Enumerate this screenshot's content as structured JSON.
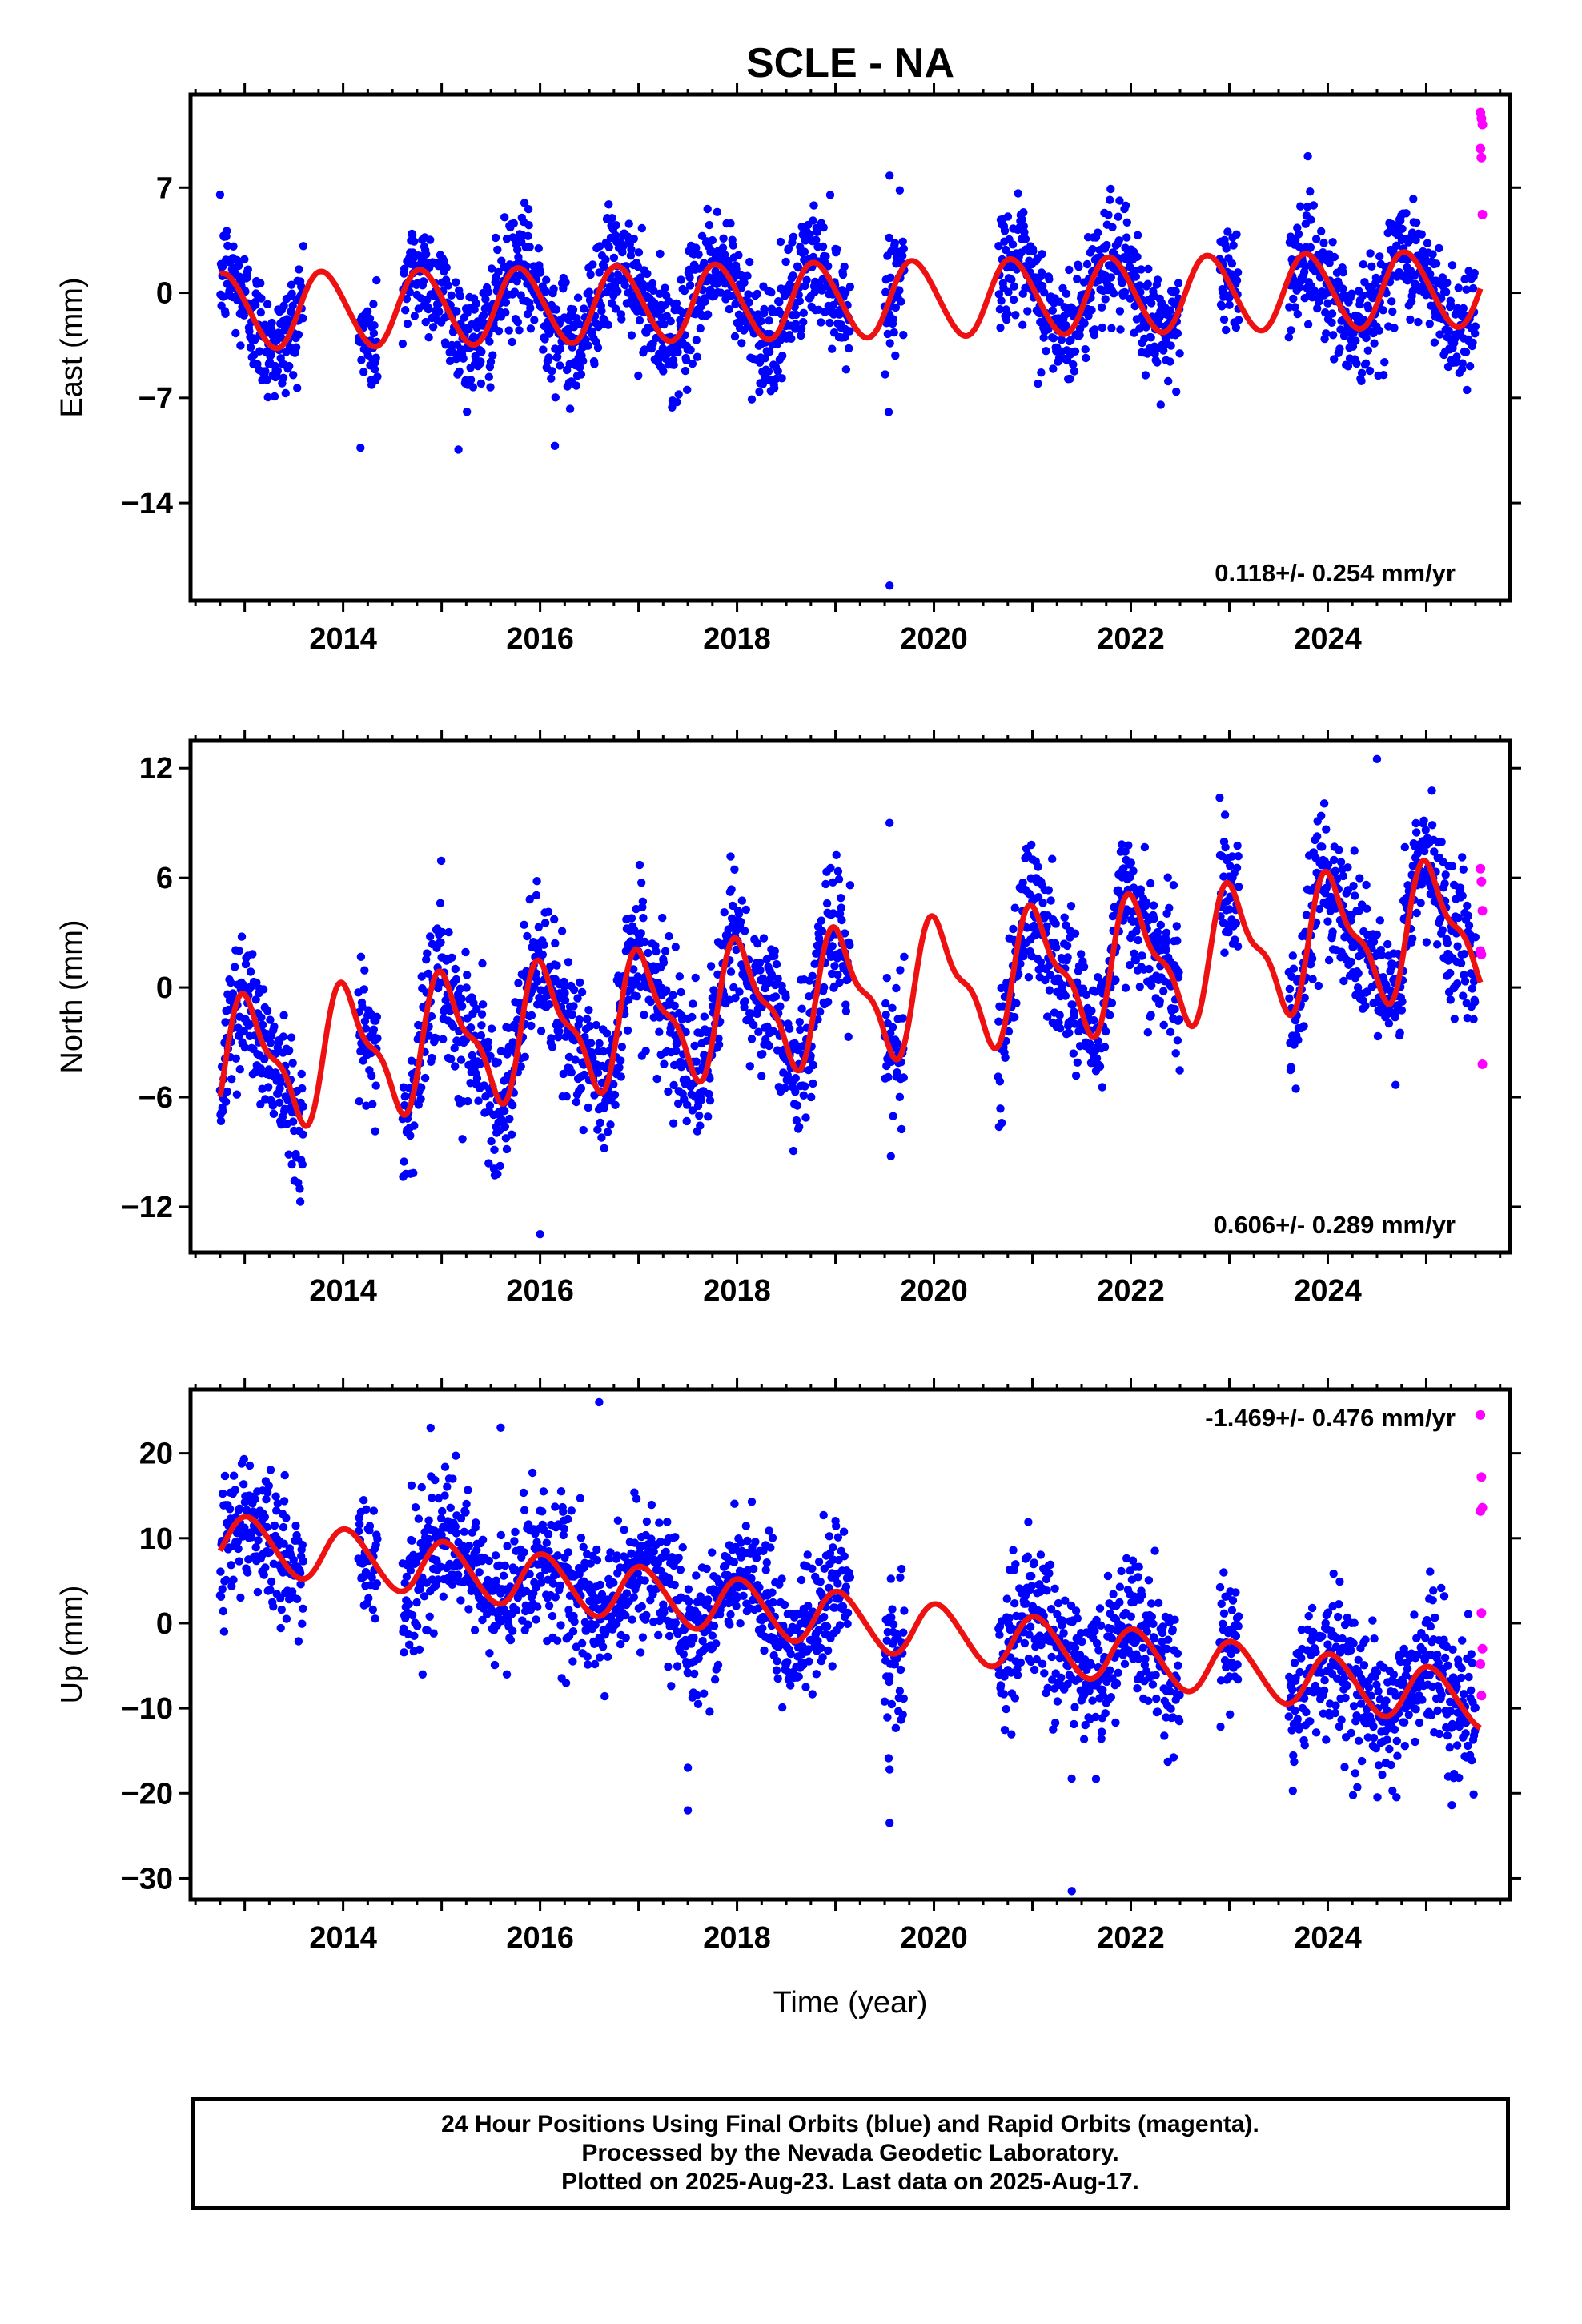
{
  "title": "SCLE - NA",
  "xlabel": "Time (year)",
  "footer": {
    "line1": "24 Hour Positions Using Final Orbits (blue) and Rapid Orbits (magenta).",
    "line2": "Processed by the Nevada Geodetic Laboratory.",
    "line3": "Plotted on 2025-Aug-23. Last data on 2025-Aug-17."
  },
  "colors": {
    "final": "#0000ff",
    "rapid": "#ff00ff",
    "model": "#ee1111"
  },
  "chart_data": [
    {
      "type": "scatter",
      "ylabel": "East (mm)",
      "rate_label": "0.118+/- 0.254 mm/yr",
      "xlim": [
        2012.45,
        2025.85
      ],
      "ylim": [
        -20.5,
        13.2
      ],
      "yticks": [
        7,
        0,
        -7,
        -14
      ],
      "xticks": [
        2014,
        2016,
        2018,
        2020,
        2022,
        2024
      ],
      "model": {
        "intercept": -0.5,
        "rate": 0.118,
        "ref": 2019.0,
        "annual_amp": 2.5,
        "annual_phase": 0.45,
        "semi_amp": 0.2
      },
      "data_gaps": [
        [
          2013.6,
          2014.15
        ],
        [
          2014.35,
          2014.6
        ],
        [
          2019.15,
          2019.5
        ],
        [
          2019.7,
          2020.65
        ],
        [
          2022.5,
          2022.9
        ],
        [
          2023.1,
          2023.6
        ]
      ],
      "scatter_sd": 1.9,
      "rapid": [
        [
          2025.55,
          12.0
        ],
        [
          2025.56,
          11.6
        ],
        [
          2025.57,
          11.2
        ],
        [
          2025.55,
          9.6
        ],
        [
          2025.56,
          9.0
        ],
        [
          2025.57,
          5.2
        ]
      ],
      "outliers": [
        [
          2019.55,
          -19.5
        ],
        [
          2019.55,
          7.8
        ],
        [
          2016.15,
          -10.2
        ]
      ]
    },
    {
      "type": "scatter",
      "ylabel": "North (mm)",
      "rate_label": "0.606+/- 0.289 mm/yr",
      "xlim": [
        2012.45,
        2025.85
      ],
      "ylim": [
        -14.5,
        13.5
      ],
      "yticks": [
        12,
        6,
        0,
        -6,
        -12
      ],
      "xticks": [
        2014,
        2016,
        2018,
        2020,
        2022,
        2024
      ],
      "model": {
        "intercept": -0.5,
        "rate": 0.606,
        "ref": 2019.0,
        "annual_amp": 3.2,
        "annual_phase": 0.2,
        "semi_amp": 1.2
      },
      "data_gaps": [
        [
          2013.6,
          2014.15
        ],
        [
          2014.35,
          2014.6
        ],
        [
          2019.15,
          2019.5
        ],
        [
          2019.7,
          2020.65
        ],
        [
          2022.5,
          2022.9
        ],
        [
          2023.1,
          2023.6
        ]
      ],
      "scatter_sd": 1.9,
      "rapid": [
        [
          2025.55,
          6.5
        ],
        [
          2025.56,
          5.8
        ],
        [
          2025.57,
          4.2
        ],
        [
          2025.55,
          2.0
        ],
        [
          2025.56,
          1.8
        ],
        [
          2025.57,
          -4.2
        ]
      ],
      "outliers": [
        [
          2016.0,
          -13.5
        ],
        [
          2019.55,
          9.0
        ],
        [
          2024.5,
          12.5
        ]
      ]
    },
    {
      "type": "scatter",
      "ylabel": "Up (mm)",
      "rate_label": "-1.469+/- 0.476 mm/yr",
      "xlim": [
        2012.45,
        2025.85
      ],
      "ylim": [
        -32.5,
        27.5
      ],
      "yticks": [
        20,
        10,
        0,
        -10,
        -20,
        -30
      ],
      "xticks": [
        2014,
        2016,
        2018,
        2020,
        2022,
        2024
      ],
      "model": {
        "intercept": 0.5,
        "rate": -1.469,
        "ref": 2019.0,
        "annual_amp": 3.2,
        "annual_phase": 0.2,
        "semi_amp": 0.3
      },
      "data_gaps": [
        [
          2013.6,
          2014.15
        ],
        [
          2014.35,
          2014.6
        ],
        [
          2019.15,
          2019.5
        ],
        [
          2019.7,
          2020.65
        ],
        [
          2022.5,
          2022.9
        ],
        [
          2023.1,
          2023.6
        ]
      ],
      "scatter_sd": 4.0,
      "rapid": [
        [
          2025.55,
          24.5
        ],
        [
          2025.56,
          17.2
        ],
        [
          2025.57,
          13.6
        ],
        [
          2025.55,
          13.2
        ],
        [
          2025.56,
          1.2
        ],
        [
          2025.57,
          -3.0
        ],
        [
          2025.55,
          -4.8
        ],
        [
          2025.56,
          -8.5
        ]
      ],
      "outliers": [
        [
          2017.5,
          -22.0
        ],
        [
          2017.5,
          -17.0
        ],
        [
          2019.55,
          -23.5
        ],
        [
          2019.55,
          -17.2
        ],
        [
          2021.4,
          -31.5
        ],
        [
          2016.6,
          26.0
        ],
        [
          2015.6,
          23.0
        ],
        [
          2024.3,
          -19.3
        ]
      ]
    }
  ]
}
